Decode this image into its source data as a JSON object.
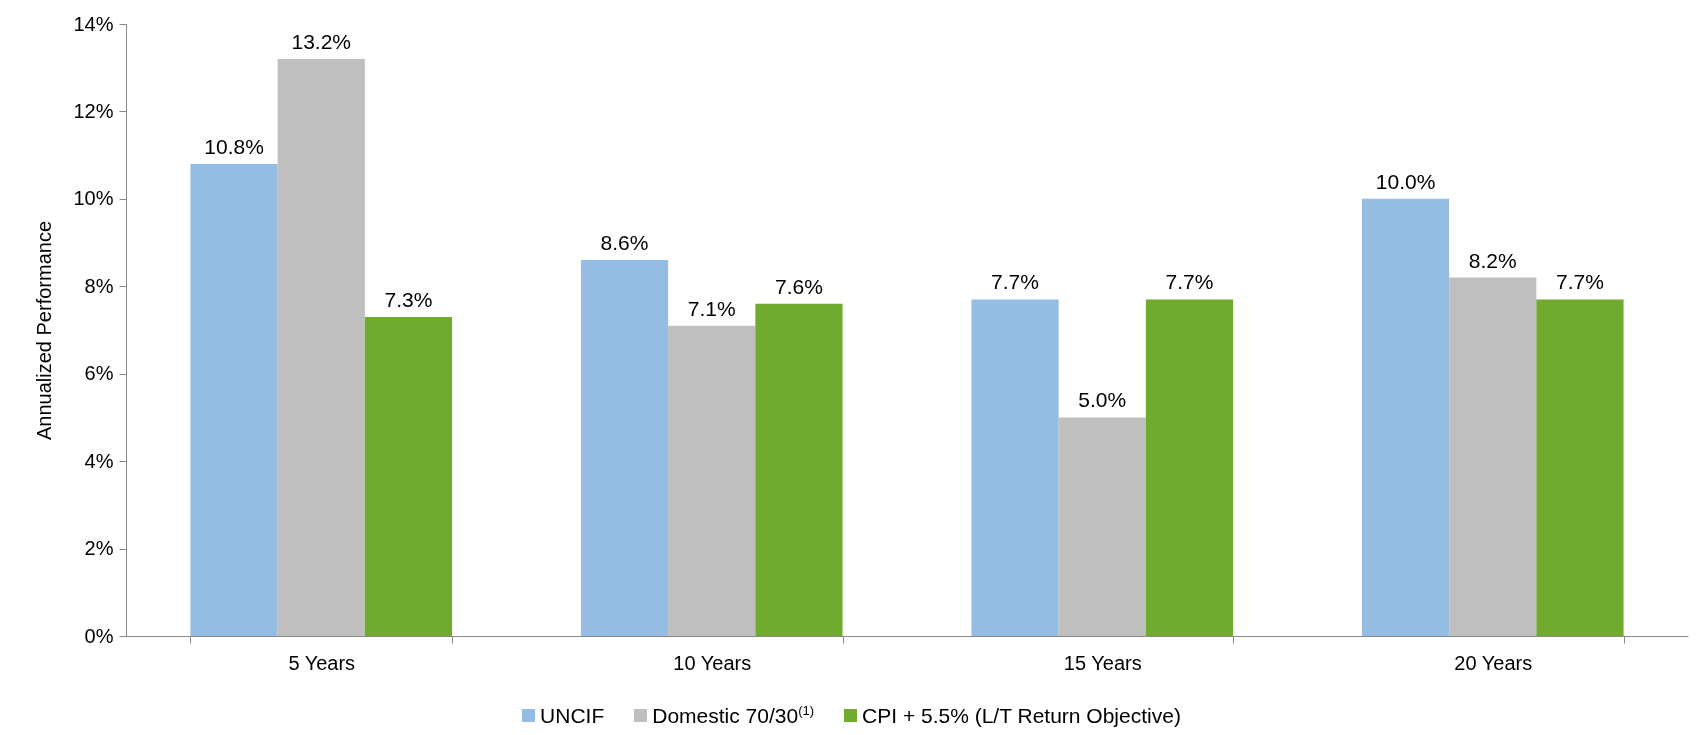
{
  "chart_data": {
    "type": "bar",
    "ylabel": "Annualized Performance",
    "categories": [
      "5 Years",
      "10 Years",
      "15 Years",
      "20 Years"
    ],
    "series": [
      {
        "name": "UNCIF",
        "color": "#95bde4",
        "values": [
          10.8,
          8.6,
          7.7,
          10.0
        ],
        "value_labels": [
          "10.8%",
          "8.6%",
          "7.7%",
          "10.0%"
        ]
      },
      {
        "name": "Domestic 70/30$^{(1)}$",
        "color": "#bfbfbf",
        "values": [
          13.2,
          7.1,
          5.0,
          8.2
        ],
        "value_labels": [
          "13.2%",
          "7.1%",
          "5.0%",
          "8.2%"
        ]
      },
      {
        "name": "CPI + 5.5% (L/T Return Objective)",
        "color": "#70aa2f",
        "values": [
          7.3,
          7.6,
          7.7,
          7.7
        ],
        "value_labels": [
          "7.3%",
          "7.6%",
          "7.7%",
          "7.7%"
        ]
      }
    ],
    "ylim": [
      0,
      14
    ],
    "yticks": [
      {
        "value": 0,
        "label": "0%"
      },
      {
        "value": 2,
        "label": "2%"
      },
      {
        "value": 4,
        "label": "4%"
      },
      {
        "value": 6,
        "label": "6%"
      },
      {
        "value": 8,
        "label": "8%"
      },
      {
        "value": 10,
        "label": "10%"
      },
      {
        "value": 12,
        "label": "12%"
      },
      {
        "value": 14,
        "label": "14%"
      }
    ],
    "grid": false,
    "legend": "bottom"
  }
}
